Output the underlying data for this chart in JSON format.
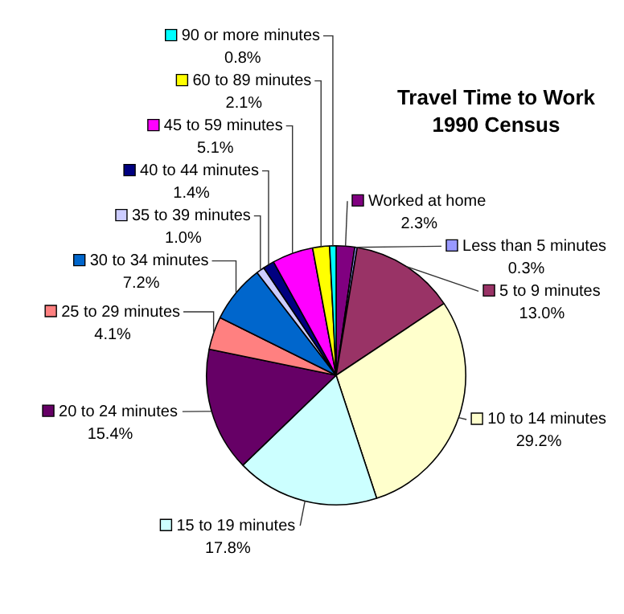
{
  "chart_data": {
    "type": "pie",
    "title": "Travel Time to Work\n1990 Census",
    "categories": [
      "Worked at home",
      "Less than 5 minutes",
      "5 to 9 minutes",
      "10 to 14 minutes",
      "15 to 19 minutes",
      "20 to 24 minutes",
      "25 to 29 minutes",
      "30 to 34 minutes",
      "35 to 39 minutes",
      "40 to 44 minutes",
      "45 to 59 minutes",
      "60 to 89 minutes",
      "90 or more minutes"
    ],
    "values": [
      2.3,
      0.3,
      13.0,
      29.2,
      17.8,
      15.4,
      4.1,
      7.2,
      1.0,
      1.4,
      5.1,
      2.1,
      0.8
    ],
    "value_labels": [
      "2.3%",
      "0.3%",
      "13.0%",
      "29.2%",
      "17.8%",
      "15.4%",
      "4.1%",
      "7.2%",
      "1.0%",
      "1.4%",
      "5.1%",
      "2.1%",
      "0.8%"
    ],
    "colors": [
      "#800080",
      "#9999ff",
      "#993366",
      "#ffffcc",
      "#ccffff",
      "#660066",
      "#ff8080",
      "#0066cc",
      "#ccccff",
      "#000080",
      "#ff00ff",
      "#ffff00",
      "#00ffff"
    ],
    "legend": "left"
  }
}
